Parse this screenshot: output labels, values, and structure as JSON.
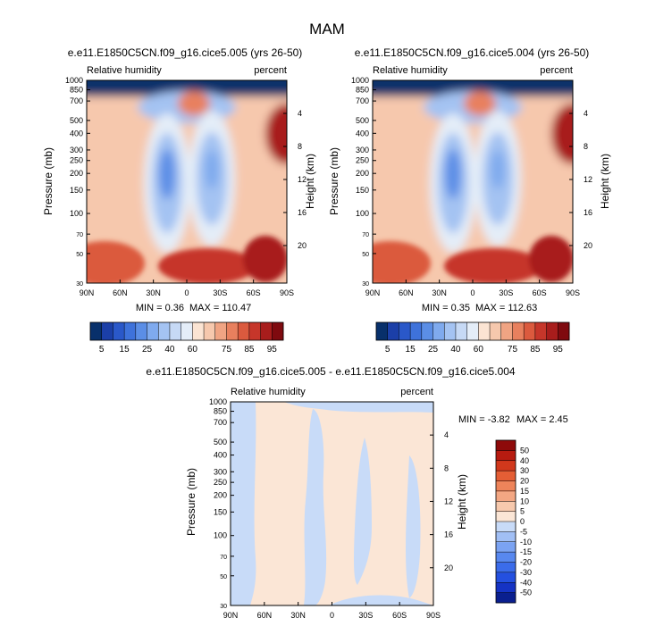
{
  "figure": {
    "title": "MAM"
  },
  "chart_data": [
    {
      "type": "heatmap",
      "title": "e.e11.E1850C5CN.f09_g16.cice5.005 (yrs 26-50)",
      "left_label": "Relative humidity",
      "right_label": "percent",
      "ylabel": "Pressure (mb)",
      "ylabel_right": "Height (km)",
      "x_ticks": [
        "90N",
        "60N",
        "30N",
        "0",
        "30S",
        "60S",
        "90S"
      ],
      "pressure_ticks": [
        30,
        50,
        70,
        100,
        150,
        200,
        250,
        300,
        400,
        500,
        700,
        850,
        1000
      ],
      "height_ticks": [
        4,
        8,
        12,
        16,
        20
      ],
      "ylim": [
        1000,
        30
      ],
      "min_label": "MIN =  0.36",
      "max_label": "MAX = 110.47",
      "colorbar_orientation": "horizontal",
      "levels": [
        5,
        10,
        15,
        20,
        25,
        30,
        40,
        50,
        60,
        65,
        70,
        75,
        80,
        85,
        90,
        95
      ],
      "level_labels": [
        "5",
        "15",
        "25",
        "40",
        "60",
        "75",
        "85",
        "95"
      ],
      "colors": [
        "#08306b",
        "#1b3fa8",
        "#2a58c9",
        "#3e72db",
        "#5b8ee6",
        "#7faaee",
        "#a4c3f2",
        "#c6d9f5",
        "#e4edf8",
        "#fbe4d3",
        "#f6c8ad",
        "#f0a483",
        "#e8805e",
        "#db5a3e",
        "#c6362a",
        "#a81d1c",
        "#7f0a0f"
      ]
    },
    {
      "type": "heatmap",
      "title": "e.e11.E1850C5CN.f09_g16.cice5.004 (yrs 26-50)",
      "left_label": "Relative humidity",
      "right_label": "percent",
      "ylabel": "Pressure (mb)",
      "ylabel_right": "Height (km)",
      "x_ticks": [
        "90N",
        "60N",
        "30N",
        "0",
        "30S",
        "60S",
        "90S"
      ],
      "pressure_ticks": [
        30,
        50,
        70,
        100,
        150,
        200,
        250,
        300,
        400,
        500,
        700,
        850,
        1000
      ],
      "height_ticks": [
        4,
        8,
        12,
        16,
        20
      ],
      "ylim": [
        1000,
        30
      ],
      "min_label": "MIN =  0.35",
      "max_label": "MAX = 112.63",
      "colorbar_orientation": "horizontal",
      "levels": [
        5,
        10,
        15,
        20,
        25,
        30,
        40,
        50,
        60,
        65,
        70,
        75,
        80,
        85,
        90,
        95
      ],
      "level_labels": [
        "5",
        "15",
        "25",
        "40",
        "60",
        "75",
        "85",
        "95"
      ],
      "colors": [
        "#08306b",
        "#1b3fa8",
        "#2a58c9",
        "#3e72db",
        "#5b8ee6",
        "#7faaee",
        "#a4c3f2",
        "#c6d9f5",
        "#e4edf8",
        "#fbe4d3",
        "#f6c8ad",
        "#f0a483",
        "#e8805e",
        "#db5a3e",
        "#c6362a",
        "#a81d1c",
        "#7f0a0f"
      ]
    },
    {
      "type": "heatmap",
      "title": "e.e11.E1850C5CN.f09_g16.cice5.005 - e.e11.E1850C5CN.f09_g16.cice5.004",
      "left_label": "Relative humidity",
      "right_label": "percent",
      "ylabel": "Pressure (mb)",
      "ylabel_right": "Height (km)",
      "x_ticks": [
        "90N",
        "60N",
        "30N",
        "0",
        "30S",
        "60S",
        "90S"
      ],
      "pressure_ticks": [
        30,
        50,
        70,
        100,
        150,
        200,
        250,
        300,
        400,
        500,
        700,
        850,
        1000
      ],
      "height_ticks": [
        4,
        8,
        12,
        16,
        20
      ],
      "ylim": [
        1000,
        30
      ],
      "min_label": "MIN = -3.82",
      "max_label": "MAX =  2.45",
      "colorbar_orientation": "vertical",
      "levels": [
        -50,
        -40,
        -30,
        -20,
        -15,
        -10,
        -5,
        0,
        5,
        10,
        15,
        20,
        30,
        40,
        50
      ],
      "level_labels": [
        "-50",
        "-40",
        "-30",
        "-20",
        "-15",
        "-10",
        "-5",
        "0",
        "5",
        "10",
        "15",
        "20",
        "30",
        "40",
        "50"
      ],
      "colors": [
        "#0a1f8f",
        "#1533c4",
        "#2450e0",
        "#3b6cea",
        "#5888ef",
        "#7ba3f2",
        "#a1bff5",
        "#c8dbf8",
        "#fbe6d6",
        "#f7c9ad",
        "#f3a783",
        "#ee845a",
        "#e45e35",
        "#d1381c",
        "#b71b10",
        "#8e0a0a"
      ]
    }
  ]
}
